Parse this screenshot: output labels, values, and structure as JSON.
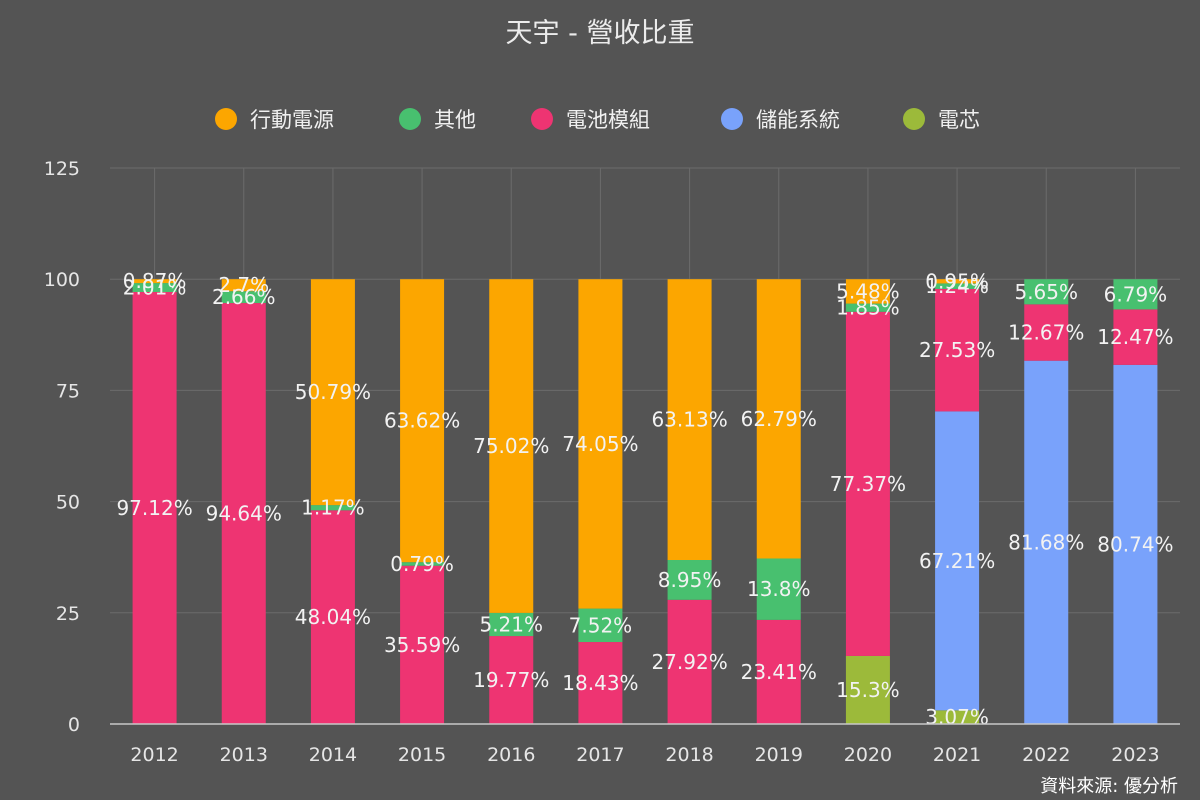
{
  "chart_data": {
    "type": "bar",
    "stacked": true,
    "title": "天宇 - 營收比重",
    "source": "資料來源: 優分析",
    "categories": [
      "2012",
      "2013",
      "2014",
      "2015",
      "2016",
      "2017",
      "2018",
      "2019",
      "2020",
      "2021",
      "2022",
      "2023"
    ],
    "ylim": [
      0,
      125
    ],
    "yticks": [
      0,
      25,
      50,
      75,
      100,
      125
    ],
    "grid": true,
    "legend_position": "top",
    "series": [
      {
        "name": "電芯",
        "color": "#9cba3a",
        "values": [
          null,
          null,
          null,
          null,
          null,
          null,
          null,
          null,
          15.3,
          3.07,
          null,
          null
        ],
        "labels": [
          "",
          "",
          "",
          "",
          "",
          "",
          "",
          "",
          "15.3%",
          "3.07%",
          "",
          ""
        ]
      },
      {
        "name": "儲能系統",
        "color": "#79a2fb",
        "values": [
          null,
          null,
          null,
          null,
          null,
          null,
          null,
          null,
          null,
          67.21,
          81.68,
          80.74
        ],
        "labels": [
          "",
          "",
          "",
          "",
          "",
          "",
          "",
          "",
          "",
          "67.21%",
          "81.68%",
          "80.74%"
        ]
      },
      {
        "name": "電池模組",
        "color": "#ee3472",
        "values": [
          97.12,
          94.64,
          48.04,
          35.59,
          19.77,
          18.43,
          27.92,
          23.41,
          77.37,
          27.53,
          12.67,
          12.47
        ],
        "labels": [
          "97.12%",
          "94.64%",
          "48.04%",
          "35.59%",
          "19.77%",
          "18.43%",
          "27.92%",
          "23.41%",
          "77.37%",
          "27.53%",
          "12.67%",
          "12.47%"
        ]
      },
      {
        "name": "其他",
        "color": "#48c06f",
        "values": [
          2.01,
          2.66,
          1.17,
          0.79,
          5.21,
          7.52,
          8.95,
          13.8,
          1.85,
          1.24,
          5.65,
          6.79
        ],
        "labels": [
          "2.01%",
          "2.66%",
          "1.17%",
          "0.79%",
          "5.21%",
          "7.52%",
          "8.95%",
          "13.8%",
          "1.85%",
          "1.24%",
          "5.65%",
          "6.79%"
        ]
      },
      {
        "name": "行動電源",
        "color": "#fca600",
        "values": [
          0.87,
          2.7,
          50.79,
          63.62,
          75.02,
          74.05,
          63.13,
          62.79,
          5.48,
          0.95,
          null,
          null
        ],
        "labels": [
          "0.87%",
          "2.7%",
          "50.79%",
          "63.62%",
          "75.02%",
          "74.05%",
          "63.13%",
          "62.79%",
          "5.48%",
          "0.95%",
          "",
          ""
        ]
      }
    ],
    "legend_order": [
      "行動電源",
      "其他",
      "電池模組",
      "儲能系統",
      "電芯"
    ]
  }
}
